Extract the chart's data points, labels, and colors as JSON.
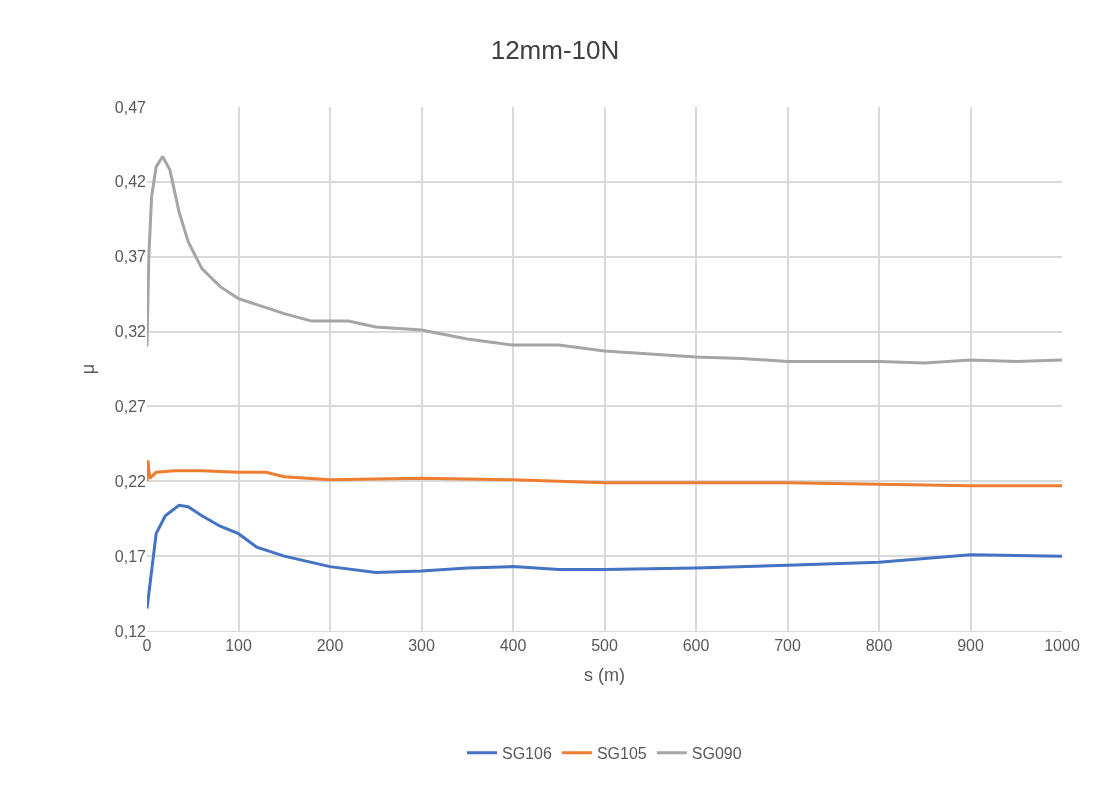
{
  "chart_data": {
    "type": "line",
    "title": "12mm-10N",
    "xlabel": "s (m)",
    "ylabel": "μ",
    "xlim": [
      0,
      1000
    ],
    "xticks": [
      0,
      100,
      200,
      300,
      400,
      500,
      600,
      700,
      800,
      900,
      1000
    ],
    "ylim": [
      0.12,
      0.47
    ],
    "yticks": [
      {
        "value": 0.12,
        "label": "0,12"
      },
      {
        "value": 0.17,
        "label": "0,17"
      },
      {
        "value": 0.22,
        "label": "0,22"
      },
      {
        "value": 0.27,
        "label": "0,27"
      },
      {
        "value": 0.32,
        "label": "0,32"
      },
      {
        "value": 0.37,
        "label": "0,37"
      },
      {
        "value": 0.42,
        "label": "0,42"
      },
      {
        "value": 0.47,
        "label": "0,47"
      }
    ],
    "grid": true,
    "legend": "bottom",
    "marker": "none",
    "line_style": "solid",
    "series": [
      {
        "name": "SG106",
        "color": "#4472c4",
        "x": [
          0,
          5,
          10,
          20,
          35,
          45,
          60,
          80,
          100,
          120,
          150,
          200,
          250,
          300,
          350,
          400,
          450,
          500,
          600,
          700,
          800,
          900,
          1000
        ],
        "values": [
          0.135,
          0.16,
          0.185,
          0.197,
          0.204,
          0.203,
          0.197,
          0.19,
          0.185,
          0.176,
          0.17,
          0.163,
          0.159,
          0.16,
          0.162,
          0.163,
          0.161,
          0.161,
          0.162,
          0.164,
          0.166,
          0.171,
          0.17
        ]
      },
      {
        "name": "SG105",
        "color": "#ed7d31",
        "x": [
          0,
          1,
          3,
          10,
          30,
          60,
          100,
          130,
          150,
          200,
          300,
          400,
          500,
          600,
          700,
          800,
          900,
          1000
        ],
        "values": [
          0.22,
          0.234,
          0.222,
          0.226,
          0.227,
          0.227,
          0.226,
          0.226,
          0.223,
          0.221,
          0.222,
          0.221,
          0.219,
          0.219,
          0.219,
          0.218,
          0.217,
          0.217
        ]
      },
      {
        "name": "SG090",
        "color": "#a5a5a5",
        "x": [
          0,
          2,
          5,
          10,
          17,
          25,
          35,
          45,
          60,
          80,
          100,
          130,
          150,
          180,
          200,
          220,
          250,
          300,
          350,
          400,
          450,
          500,
          550,
          600,
          650,
          700,
          750,
          800,
          850,
          900,
          950,
          1000
        ],
        "values": [
          0.31,
          0.37,
          0.41,
          0.43,
          0.437,
          0.428,
          0.4,
          0.38,
          0.362,
          0.35,
          0.342,
          0.336,
          0.332,
          0.327,
          0.327,
          0.327,
          0.323,
          0.321,
          0.315,
          0.311,
          0.311,
          0.307,
          0.305,
          0.303,
          0.302,
          0.3,
          0.3,
          0.3,
          0.299,
          0.301,
          0.3,
          0.301
        ]
      }
    ]
  }
}
